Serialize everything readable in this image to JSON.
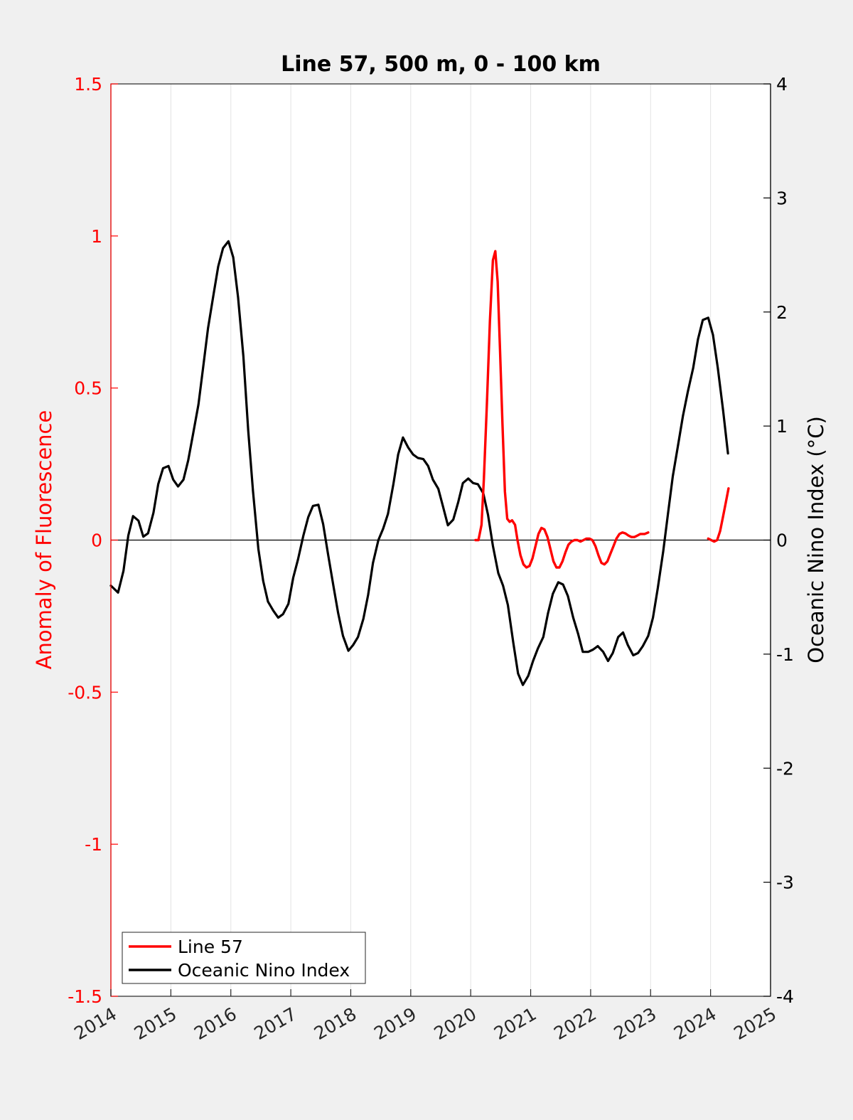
{
  "chart_data": {
    "type": "line",
    "title": "Line 57, 500 m, 0 - 100 km",
    "xlim": [
      2014,
      2025
    ],
    "x_ticks": [
      "2014",
      "2015",
      "2016",
      "2017",
      "2018",
      "2019",
      "2020",
      "2021",
      "2022",
      "2023",
      "2024",
      "2025"
    ],
    "y_left": {
      "label": "Anomaly of Fluorescence",
      "ylim": [
        -1.5,
        1.5
      ],
      "ticks": [
        "-1.5",
        "-1",
        "-0.5",
        "0",
        "0.5",
        "1",
        "1.5"
      ],
      "color": "#ff0000"
    },
    "y_right": {
      "label": "Oceanic Nino Index (°C)",
      "ylim": [
        -4,
        4
      ],
      "ticks": [
        "-4",
        "-3",
        "-2",
        "-1",
        "0",
        "1",
        "2",
        "3",
        "4"
      ],
      "color": "#000000"
    },
    "grid": "vertical",
    "zero_line": true,
    "legend": {
      "placement": "bottom-left",
      "entries": [
        "Line 57",
        "Oceanic Nino Index"
      ]
    },
    "series": [
      {
        "name": "Line 57",
        "axis": "left",
        "color": "#ff0000",
        "segments": [
          [
            [
              2020.08,
              0.0
            ],
            [
              2020.13,
              0.0
            ],
            [
              2020.18,
              0.05
            ],
            [
              2020.22,
              0.2
            ],
            [
              2020.27,
              0.45
            ],
            [
              2020.32,
              0.72
            ],
            [
              2020.37,
              0.92
            ],
            [
              2020.41,
              0.95
            ],
            [
              2020.45,
              0.85
            ],
            [
              2020.49,
              0.62
            ],
            [
              2020.53,
              0.38
            ],
            [
              2020.57,
              0.16
            ],
            [
              2020.61,
              0.07
            ],
            [
              2020.65,
              0.06
            ],
            [
              2020.69,
              0.065
            ],
            [
              2020.74,
              0.05
            ],
            [
              2020.78,
              0.0
            ],
            [
              2020.83,
              -0.05
            ],
            [
              2020.88,
              -0.08
            ],
            [
              2020.93,
              -0.09
            ],
            [
              2020.98,
              -0.085
            ],
            [
              2021.03,
              -0.06
            ],
            [
              2021.08,
              -0.02
            ],
            [
              2021.13,
              0.02
            ],
            [
              2021.18,
              0.04
            ],
            [
              2021.23,
              0.035
            ],
            [
              2021.28,
              0.01
            ],
            [
              2021.33,
              -0.03
            ],
            [
              2021.38,
              -0.07
            ],
            [
              2021.43,
              -0.09
            ],
            [
              2021.48,
              -0.09
            ],
            [
              2021.53,
              -0.07
            ],
            [
              2021.58,
              -0.04
            ],
            [
              2021.63,
              -0.015
            ],
            [
              2021.68,
              -0.005
            ],
            [
              2021.73,
              0.0
            ],
            [
              2021.78,
              0.0
            ],
            [
              2021.83,
              -0.005
            ],
            [
              2021.88,
              0.0
            ],
            [
              2021.93,
              0.005
            ],
            [
              2021.98,
              0.005
            ],
            [
              2022.03,
              0.0
            ],
            [
              2022.08,
              -0.02
            ],
            [
              2022.13,
              -0.05
            ],
            [
              2022.18,
              -0.075
            ],
            [
              2022.23,
              -0.08
            ],
            [
              2022.28,
              -0.07
            ],
            [
              2022.33,
              -0.045
            ],
            [
              2022.38,
              -0.02
            ],
            [
              2022.43,
              0.005
            ],
            [
              2022.48,
              0.02
            ],
            [
              2022.53,
              0.025
            ],
            [
              2022.58,
              0.022
            ],
            [
              2022.63,
              0.015
            ],
            [
              2022.68,
              0.01
            ],
            [
              2022.73,
              0.01
            ],
            [
              2022.78,
              0.015
            ],
            [
              2022.83,
              0.02
            ],
            [
              2022.9,
              0.02
            ],
            [
              2022.96,
              0.025
            ]
          ],
          [
            [
              2023.96,
              0.005
            ],
            [
              2024.01,
              0.0
            ],
            [
              2024.06,
              -0.005
            ],
            [
              2024.11,
              0.0
            ],
            [
              2024.16,
              0.03
            ],
            [
              2024.21,
              0.08
            ],
            [
              2024.26,
              0.13
            ],
            [
              2024.3,
              0.17
            ]
          ]
        ]
      },
      {
        "name": "Oceanic Nino Index",
        "axis": "right",
        "color": "#000000",
        "points": [
          [
            2014.0,
            -0.4
          ],
          [
            2014.04,
            -0.42
          ],
          [
            2014.12,
            -0.46
          ],
          [
            2014.21,
            -0.27
          ],
          [
            2014.29,
            0.04
          ],
          [
            2014.37,
            0.21
          ],
          [
            2014.46,
            0.17
          ],
          [
            2014.54,
            0.03
          ],
          [
            2014.62,
            0.06
          ],
          [
            2014.71,
            0.24
          ],
          [
            2014.79,
            0.49
          ],
          [
            2014.87,
            0.63
          ],
          [
            2014.96,
            0.65
          ],
          [
            2015.04,
            0.53
          ],
          [
            2015.12,
            0.47
          ],
          [
            2015.21,
            0.53
          ],
          [
            2015.29,
            0.7
          ],
          [
            2015.37,
            0.93
          ],
          [
            2015.46,
            1.19
          ],
          [
            2015.54,
            1.52
          ],
          [
            2015.62,
            1.86
          ],
          [
            2015.71,
            2.15
          ],
          [
            2015.79,
            2.4
          ],
          [
            2015.87,
            2.56
          ],
          [
            2015.96,
            2.62
          ],
          [
            2016.04,
            2.48
          ],
          [
            2016.12,
            2.13
          ],
          [
            2016.21,
            1.61
          ],
          [
            2016.29,
            0.96
          ],
          [
            2016.37,
            0.43
          ],
          [
            2016.46,
            -0.08
          ],
          [
            2016.54,
            -0.36
          ],
          [
            2016.62,
            -0.54
          ],
          [
            2016.71,
            -0.62
          ],
          [
            2016.79,
            -0.68
          ],
          [
            2016.87,
            -0.65
          ],
          [
            2016.96,
            -0.56
          ],
          [
            2017.04,
            -0.33
          ],
          [
            2017.12,
            -0.17
          ],
          [
            2017.21,
            0.04
          ],
          [
            2017.29,
            0.2
          ],
          [
            2017.37,
            0.3
          ],
          [
            2017.46,
            0.31
          ],
          [
            2017.54,
            0.14
          ],
          [
            2017.62,
            -0.12
          ],
          [
            2017.71,
            -0.4
          ],
          [
            2017.79,
            -0.64
          ],
          [
            2017.87,
            -0.84
          ],
          [
            2017.96,
            -0.97
          ],
          [
            2018.04,
            -0.92
          ],
          [
            2018.12,
            -0.85
          ],
          [
            2018.21,
            -0.69
          ],
          [
            2018.29,
            -0.48
          ],
          [
            2018.37,
            -0.2
          ],
          [
            2018.46,
            0.0
          ],
          [
            2018.54,
            0.1
          ],
          [
            2018.62,
            0.23
          ],
          [
            2018.71,
            0.49
          ],
          [
            2018.79,
            0.75
          ],
          [
            2018.87,
            0.9
          ],
          [
            2018.96,
            0.81
          ],
          [
            2019.04,
            0.75
          ],
          [
            2019.12,
            0.72
          ],
          [
            2019.21,
            0.71
          ],
          [
            2019.29,
            0.65
          ],
          [
            2019.37,
            0.53
          ],
          [
            2019.46,
            0.45
          ],
          [
            2019.54,
            0.29
          ],
          [
            2019.62,
            0.13
          ],
          [
            2019.71,
            0.18
          ],
          [
            2019.79,
            0.33
          ],
          [
            2019.87,
            0.5
          ],
          [
            2019.96,
            0.54
          ],
          [
            2020.04,
            0.5
          ],
          [
            2020.12,
            0.49
          ],
          [
            2020.21,
            0.41
          ],
          [
            2020.29,
            0.22
          ],
          [
            2020.37,
            -0.05
          ],
          [
            2020.46,
            -0.29
          ],
          [
            2020.54,
            -0.4
          ],
          [
            2020.62,
            -0.57
          ],
          [
            2020.71,
            -0.9
          ],
          [
            2020.79,
            -1.17
          ],
          [
            2020.87,
            -1.27
          ],
          [
            2020.96,
            -1.19
          ],
          [
            2021.04,
            -1.06
          ],
          [
            2021.12,
            -0.95
          ],
          [
            2021.21,
            -0.85
          ],
          [
            2021.29,
            -0.64
          ],
          [
            2021.37,
            -0.47
          ],
          [
            2021.46,
            -0.37
          ],
          [
            2021.54,
            -0.39
          ],
          [
            2021.62,
            -0.49
          ],
          [
            2021.71,
            -0.68
          ],
          [
            2021.79,
            -0.82
          ],
          [
            2021.87,
            -0.98
          ],
          [
            2021.96,
            -0.98
          ],
          [
            2022.04,
            -0.96
          ],
          [
            2022.12,
            -0.93
          ],
          [
            2022.21,
            -0.98
          ],
          [
            2022.29,
            -1.06
          ],
          [
            2022.37,
            -0.99
          ],
          [
            2022.46,
            -0.85
          ],
          [
            2022.54,
            -0.81
          ],
          [
            2022.62,
            -0.92
          ],
          [
            2022.71,
            -1.01
          ],
          [
            2022.79,
            -0.99
          ],
          [
            2022.87,
            -0.93
          ],
          [
            2022.96,
            -0.84
          ],
          [
            2023.04,
            -0.68
          ],
          [
            2023.12,
            -0.42
          ],
          [
            2023.21,
            -0.1
          ],
          [
            2023.29,
            0.23
          ],
          [
            2023.37,
            0.56
          ],
          [
            2023.46,
            0.84
          ],
          [
            2023.54,
            1.09
          ],
          [
            2023.62,
            1.3
          ],
          [
            2023.71,
            1.51
          ],
          [
            2023.79,
            1.76
          ],
          [
            2023.87,
            1.93
          ],
          [
            2023.96,
            1.95
          ],
          [
            2024.04,
            1.8
          ],
          [
            2024.12,
            1.51
          ],
          [
            2024.21,
            1.13
          ],
          [
            2024.29,
            0.76
          ]
        ]
      }
    ]
  }
}
